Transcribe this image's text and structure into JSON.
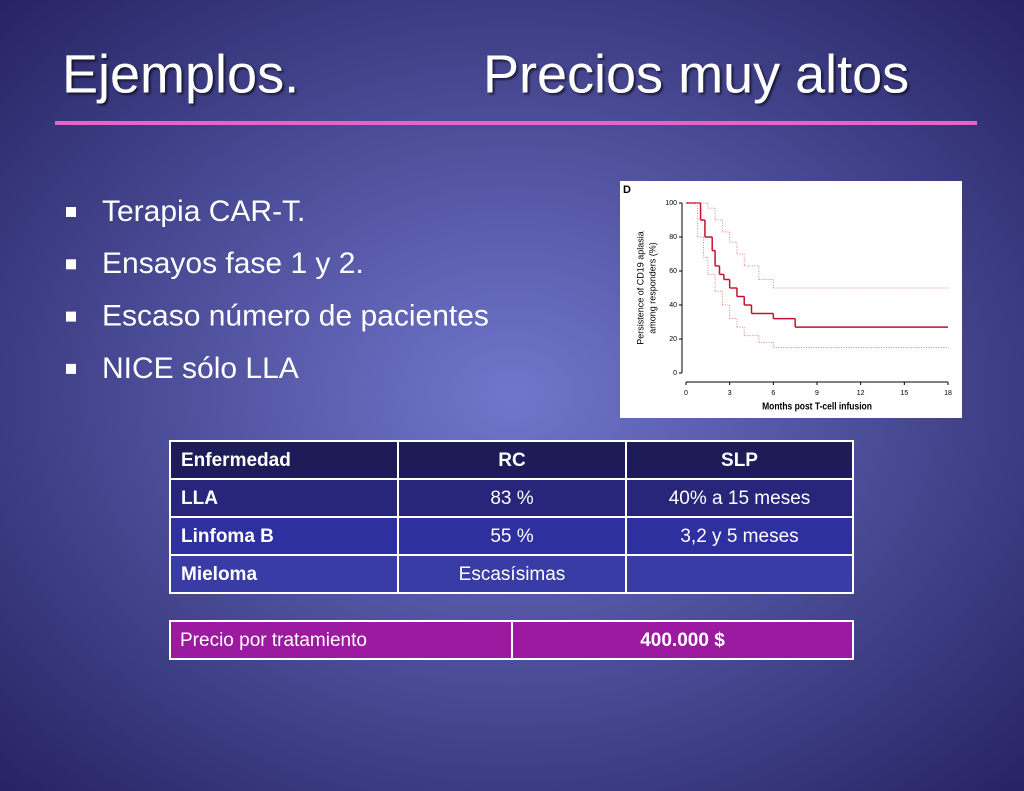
{
  "title": {
    "left": "Ejemplos.",
    "right": "Precios muy altos"
  },
  "bullets": [
    "Terapia CAR-T.",
    "Ensayos fase 1 y 2.",
    "Escaso número de pacientes",
    "NICE sólo LLA"
  ],
  "chart_data": {
    "type": "line",
    "step": true,
    "panel_label": "D",
    "xlabel": "Months post T-cell infusion",
    "ylabel_lines": [
      "Persistence of CD19 aplasia",
      "among responders (%)"
    ],
    "xlim": [
      0,
      18
    ],
    "ylim": [
      0,
      100
    ],
    "xticks": [
      0,
      3,
      6,
      9,
      12,
      15,
      18
    ],
    "yticks": [
      0,
      20,
      40,
      60,
      80,
      100
    ],
    "series": [
      {
        "color": "#c8102e",
        "style": "solid",
        "x": [
          0,
          1,
          1.3,
          1.8,
          2,
          2.3,
          2.6,
          3,
          3.5,
          4,
          4.5,
          6,
          7.5,
          18
        ],
        "values": [
          100,
          90,
          80,
          72,
          63,
          58,
          55,
          50,
          45,
          40,
          35,
          32,
          27,
          27
        ]
      },
      {
        "color": "#e08090",
        "style": "dotted",
        "x": [
          0,
          1.5,
          2,
          2.5,
          3,
          3.5,
          4,
          5,
          6,
          18
        ],
        "values": [
          100,
          97,
          90,
          83,
          77,
          70,
          63,
          55,
          50,
          50
        ]
      },
      {
        "color": "#e08090",
        "style": "dotted",
        "x": [
          0,
          0.8,
          1.2,
          1.5,
          2,
          2.5,
          3,
          3.5,
          4,
          5,
          6,
          18
        ],
        "values": [
          100,
          80,
          68,
          58,
          48,
          40,
          32,
          27,
          22,
          18,
          15,
          15
        ]
      }
    ]
  },
  "table": {
    "header": [
      "Enfermedad",
      "RC",
      "SLP"
    ],
    "rows": [
      [
        "LLA",
        "83 %",
        "40% a 15 meses"
      ],
      [
        "Linfoma B",
        "55 %",
        "3,2 y 5 meses"
      ],
      [
        "Mieloma",
        "Escasísimas"
      ]
    ]
  },
  "price_table": {
    "rows": [
      [
        "Precio por tratamiento",
        "400.000 $"
      ]
    ]
  }
}
